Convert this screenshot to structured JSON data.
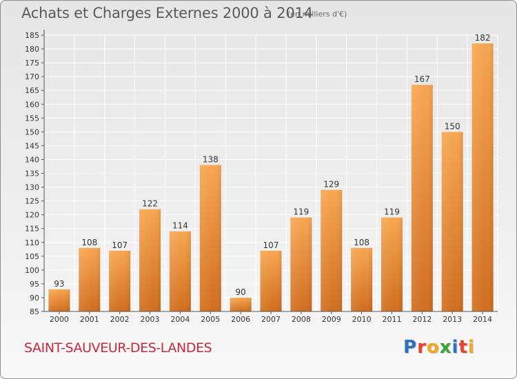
{
  "header": {
    "title": "Achats et Charges Externes 2000 à 2014",
    "unit": "(en milliers d'€)"
  },
  "footer": {
    "city": "SAINT-SAUVEUR-DES-LANDES",
    "logo_text": "Proxiti",
    "logo_colors": [
      "#2f6fc6",
      "#e8432b",
      "#f5a623",
      "#3ba339",
      "#2f6fc6",
      "#e8432b",
      "#f5a623"
    ]
  },
  "colors": {
    "bar_light": "#f7a651",
    "bar_dark": "#d06d1e",
    "grid": "#ffffff",
    "axis": "#555555"
  },
  "chart_data": {
    "type": "bar",
    "title": "Achats et Charges Externes 2000 à 2014",
    "xlabel": "",
    "ylabel": "",
    "categories": [
      "2000",
      "2001",
      "2002",
      "2003",
      "2004",
      "2005",
      "2006",
      "2007",
      "2008",
      "2009",
      "2010",
      "2011",
      "2012",
      "2013",
      "2014"
    ],
    "values": [
      93,
      108,
      107,
      122,
      114,
      138,
      90,
      107,
      119,
      129,
      108,
      119,
      167,
      150,
      182
    ],
    "ylim": [
      85,
      185
    ],
    "ytick_step": 5,
    "grid": true,
    "data_labels": true
  }
}
